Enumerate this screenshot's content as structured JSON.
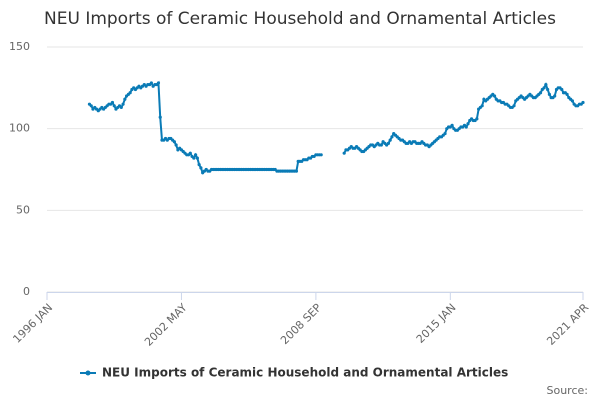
{
  "chart_data": {
    "type": "line",
    "title": "NEU Imports of Ceramic Household and Ornamental Articles",
    "categories": [
      "1996 JAN",
      null,
      null,
      null,
      null,
      null,
      null,
      null,
      null,
      null,
      null,
      null,
      null,
      null,
      null,
      null,
      null,
      null,
      null,
      null,
      null,
      null,
      null,
      null,
      null,
      null,
      null,
      null,
      null,
      null,
      null,
      null,
      null,
      null,
      null,
      null,
      null,
      null,
      null,
      null,
      null,
      null,
      null,
      null,
      null,
      null,
      null,
      null,
      null,
      null,
      null,
      null,
      null,
      null,
      null,
      null,
      null,
      null,
      null,
      null,
      null,
      null,
      null,
      null,
      null,
      null,
      null,
      null,
      null,
      null,
      null,
      null,
      null,
      null,
      null,
      null,
      "2002 MAY",
      null,
      null,
      null,
      null,
      null,
      null,
      null,
      null,
      null,
      null,
      null,
      null,
      null,
      null,
      null,
      null,
      null,
      null,
      null,
      null,
      null,
      null,
      null,
      null,
      null,
      null,
      null,
      null,
      null,
      null,
      null,
      null,
      null,
      null,
      null,
      null,
      null,
      null,
      null,
      null,
      null,
      null,
      null,
      null,
      null,
      null,
      null,
      null,
      null,
      null,
      null,
      null,
      null,
      null,
      null,
      null,
      null,
      null,
      null,
      null,
      null,
      null,
      null,
      null,
      null,
      null,
      null,
      null,
      null,
      null,
      null,
      null,
      null,
      null,
      null,
      "2008 SEP",
      null,
      null,
      null,
      null,
      null,
      null,
      null,
      null,
      null,
      null,
      null,
      null,
      null,
      null,
      null,
      null,
      null,
      null,
      null,
      null,
      null,
      null,
      null,
      null,
      null,
      null,
      null,
      null,
      null,
      null,
      null,
      null,
      null,
      null,
      null,
      null,
      null,
      null,
      null,
      null,
      null,
      null,
      null,
      null,
      null,
      null,
      null,
      null,
      null,
      null,
      null,
      null,
      null,
      null,
      null,
      null,
      null,
      null,
      null,
      null,
      null,
      null,
      null,
      null,
      null,
      null,
      null,
      null,
      null,
      null,
      null,
      null,
      null,
      null,
      null,
      "2015 JAN",
      null,
      null,
      null,
      null,
      null,
      null,
      null,
      null,
      null,
      null,
      null,
      null,
      null,
      null,
      null,
      null,
      null,
      null,
      null,
      null,
      null,
      null,
      null,
      null,
      null,
      null,
      null,
      null,
      null,
      null,
      null,
      null,
      null,
      null,
      null,
      null,
      null,
      null,
      null,
      null,
      null,
      null,
      null,
      null,
      null,
      null,
      null,
      null,
      null,
      null,
      null,
      null,
      null,
      null,
      null,
      null,
      null,
      null,
      null,
      null,
      null,
      null,
      null,
      null,
      null,
      null,
      null,
      null,
      null,
      null,
      null,
      null,
      null,
      null,
      "2021 APR"
    ],
    "series": [
      {
        "name": "NEU Imports of Ceramic Household and Ornamental Articles",
        "color": "#0a7bb6",
        "values": [
          null,
          null,
          null,
          null,
          null,
          null,
          null,
          null,
          null,
          null,
          null,
          null,
          null,
          null,
          null,
          null,
          null,
          null,
          null,
          null,
          null,
          null,
          null,
          null,
          115,
          114,
          112,
          113,
          112,
          111,
          112,
          113,
          112,
          113,
          114,
          115,
          115,
          116,
          114,
          112,
          113,
          114,
          113,
          115,
          118,
          120,
          121,
          122,
          124,
          125,
          124,
          125,
          126,
          125,
          126,
          127,
          126,
          127,
          127,
          128,
          126,
          127,
          127,
          128,
          107,
          93,
          93,
          94,
          93,
          94,
          94,
          93,
          92,
          90,
          87,
          88,
          87,
          86,
          85,
          84,
          84,
          85,
          83,
          82,
          84,
          82,
          78,
          76,
          73,
          74,
          75,
          74,
          74,
          75,
          75,
          75,
          75,
          75,
          75,
          75,
          75,
          75,
          75,
          75,
          75,
          75,
          75,
          75,
          75,
          75,
          75,
          75,
          75,
          75,
          75,
          75,
          75,
          75,
          75,
          75,
          75,
          75,
          75,
          75,
          75,
          75,
          75,
          75,
          75,
          75,
          74,
          74,
          74,
          74,
          74,
          74,
          74,
          74,
          74,
          74,
          74,
          74,
          80,
          80,
          80,
          81,
          81,
          81,
          82,
          82,
          83,
          83,
          84,
          84,
          84,
          84,
          null,
          null,
          null,
          null,
          null,
          null,
          null,
          null,
          null,
          null,
          null,
          null,
          85,
          87,
          87,
          88,
          89,
          88,
          88,
          89,
          88,
          87,
          86,
          86,
          87,
          88,
          89,
          90,
          90,
          89,
          90,
          91,
          90,
          90,
          92,
          91,
          90,
          91,
          93,
          95,
          97,
          96,
          95,
          94,
          93,
          93,
          92,
          91,
          91,
          92,
          91,
          92,
          92,
          91,
          91,
          91,
          92,
          91,
          90,
          90,
          89,
          90,
          91,
          92,
          93,
          94,
          95,
          95,
          96,
          97,
          100,
          101,
          101,
          102,
          100,
          99,
          99,
          100,
          101,
          101,
          102,
          101,
          103,
          105,
          106,
          105,
          105,
          106,
          112,
          113,
          114,
          118,
          117,
          118,
          119,
          120,
          121,
          120,
          118,
          117,
          117,
          116,
          116,
          115,
          115,
          114,
          113,
          113,
          114,
          117,
          118,
          119,
          120,
          119,
          118,
          119,
          120,
          121,
          120,
          119,
          119,
          120,
          121,
          122,
          124,
          125,
          127,
          124,
          121,
          119,
          119,
          120,
          124,
          125,
          125,
          124,
          122,
          122,
          121,
          119,
          118,
          117,
          115,
          114,
          114,
          115,
          115,
          116
        ]
      }
    ],
    "ylim": [
      0,
      150
    ],
    "yticks": [
      0,
      50,
      100,
      150
    ],
    "grid": true,
    "source": "Source:"
  }
}
